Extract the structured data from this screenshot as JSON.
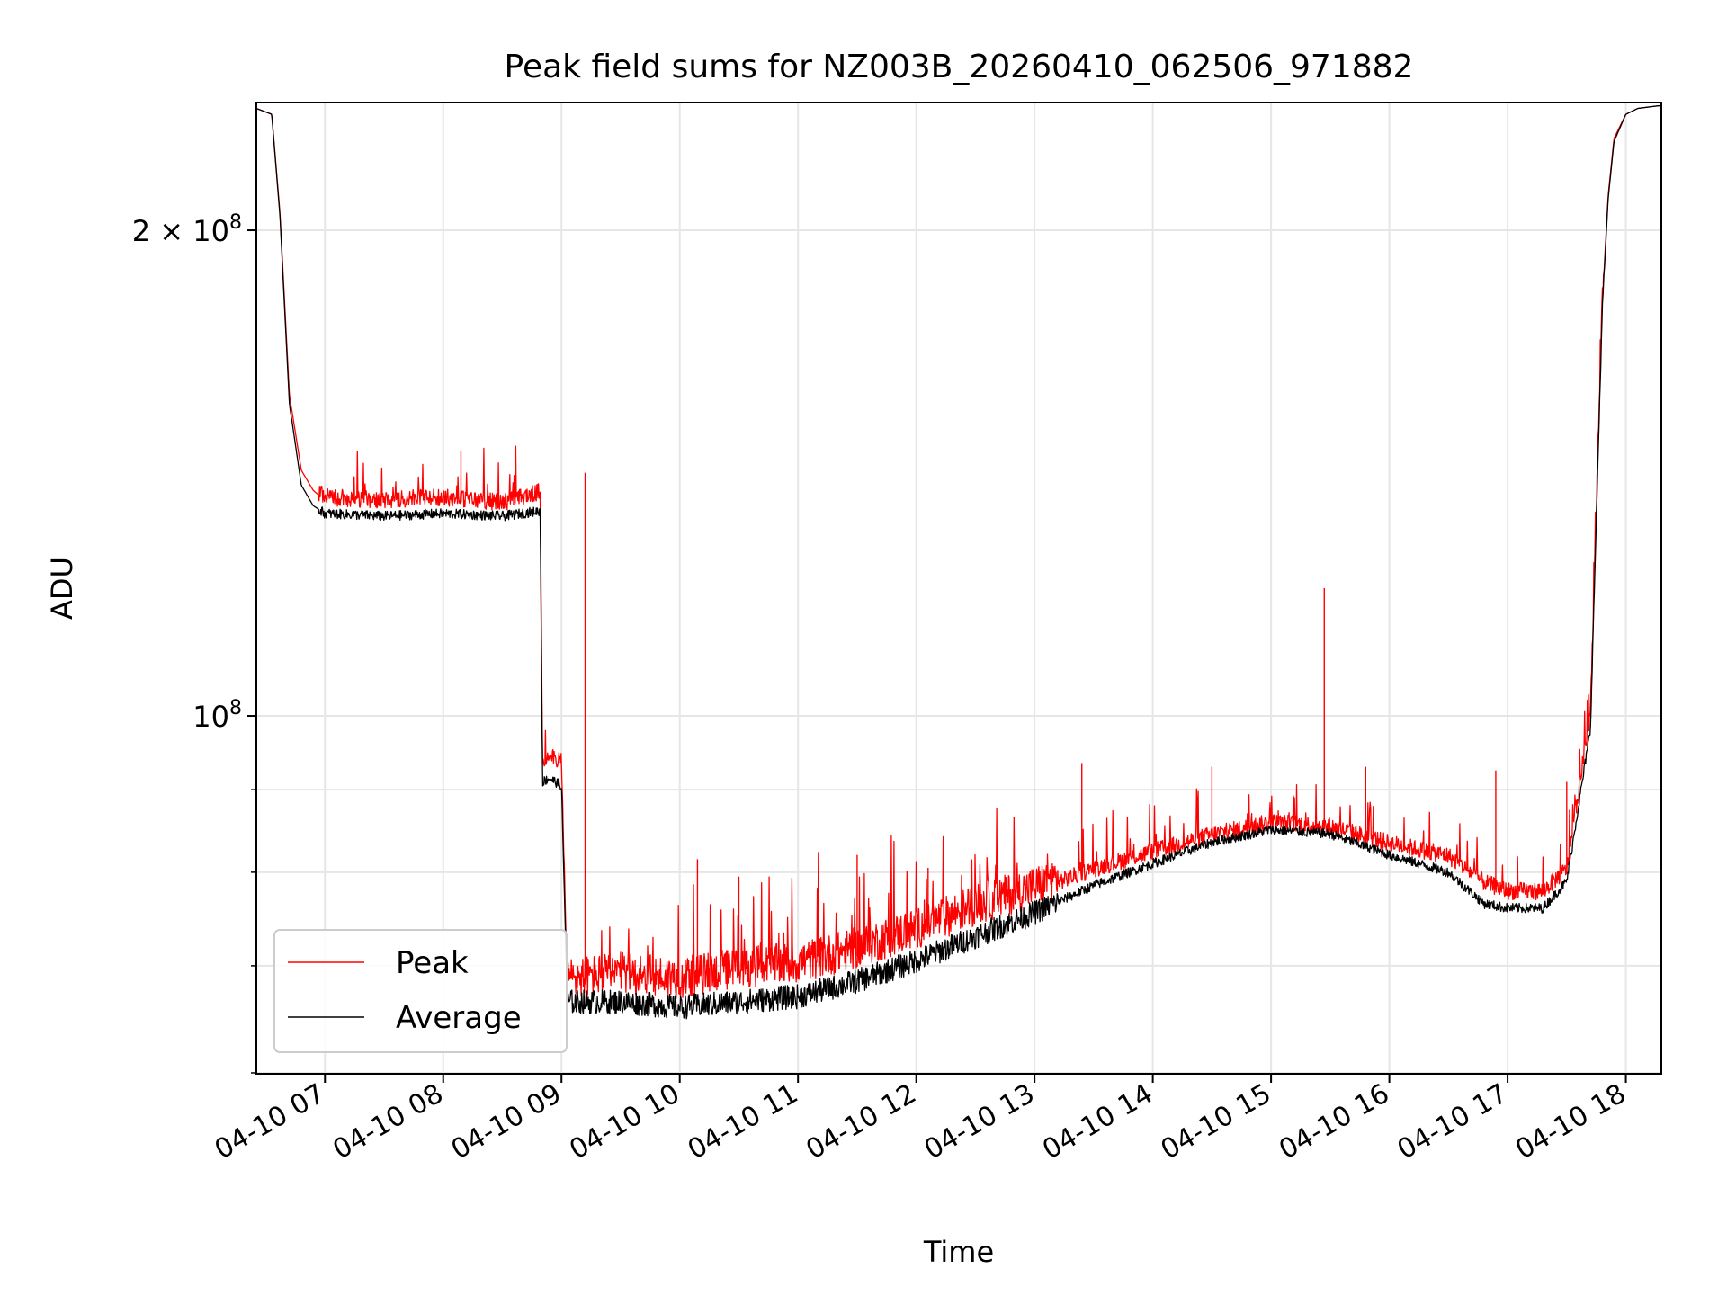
{
  "chart_data": {
    "type": "line",
    "title": "Peak field sums for NZ003B_20260410_062506_971882",
    "xlabel": "Time",
    "ylabel": "ADU",
    "yscale": "log",
    "xlim_hours": [
      6.42,
      18.3
    ],
    "ylim": [
      60000000,
      240000000
    ],
    "x_ticks": [
      {
        "hour": 7,
        "label": "04-10 07"
      },
      {
        "hour": 8,
        "label": "04-10 08"
      },
      {
        "hour": 9,
        "label": "04-10 09"
      },
      {
        "hour": 10,
        "label": "04-10 10"
      },
      {
        "hour": 11,
        "label": "04-10 11"
      },
      {
        "hour": 12,
        "label": "04-10 12"
      },
      {
        "hour": 13,
        "label": "04-10 13"
      },
      {
        "hour": 14,
        "label": "04-10 14"
      },
      {
        "hour": 15,
        "label": "04-10 15"
      },
      {
        "hour": 16,
        "label": "04-10 16"
      },
      {
        "hour": 17,
        "label": "04-10 17"
      },
      {
        "hour": 18,
        "label": "04-10 18"
      }
    ],
    "y_major_ticks": [
      {
        "value": 100000000,
        "base": "10",
        "exp": "8"
      },
      {
        "value": 200000000,
        "base": "2 × 10",
        "exp": "8"
      }
    ],
    "y_minor_ticks": [
      60000000,
      70000000,
      80000000,
      90000000
    ],
    "grid": true,
    "legend_position": "lower-left",
    "series": [
      {
        "name": "Peak",
        "color": "#ff0000",
        "x_hours": [
          6.42,
          6.55,
          6.62,
          6.7,
          6.8,
          6.9,
          7.0,
          7.5,
          8.0,
          8.5,
          8.82,
          8.84,
          8.9,
          9.0,
          9.05,
          9.5,
          10.0,
          10.5,
          11.0,
          11.5,
          12.0,
          12.5,
          13.0,
          13.5,
          14.0,
          14.5,
          15.0,
          15.5,
          16.0,
          16.5,
          16.8,
          17.0,
          17.3,
          17.5,
          17.7,
          17.8,
          17.85,
          17.9,
          18.0,
          18.1,
          18.3
        ],
        "values": [
          238000000,
          236000000,
          205000000,
          158000000,
          142000000,
          138000000,
          136000000,
          135500000,
          136000000,
          135000000,
          137000000,
          93000000,
          94500000,
          93000000,
          68000000,
          68500000,
          68000000,
          69000000,
          69500000,
          71000000,
          73000000,
          75500000,
          77500000,
          80000000,
          82000000,
          84000000,
          85500000,
          85000000,
          83000000,
          81500000,
          78500000,
          77500000,
          77500000,
          80000000,
          100000000,
          180000000,
          210000000,
          228000000,
          236000000,
          238000000,
          239000000
        ],
        "spikes": [
          {
            "hour": 8.15,
            "value": 146000000
          },
          {
            "hour": 9.2,
            "value": 141500000
          },
          {
            "hour": 10.15,
            "value": 81500000
          },
          {
            "hour": 10.5,
            "value": 79500000
          },
          {
            "hour": 11.5,
            "value": 82000000
          },
          {
            "hour": 12.1,
            "value": 80500000
          },
          {
            "hour": 13.4,
            "value": 93500000
          },
          {
            "hour": 14.5,
            "value": 93000000
          },
          {
            "hour": 15.45,
            "value": 120000000
          },
          {
            "hour": 15.8,
            "value": 93000000
          },
          {
            "hour": 16.9,
            "value": 92500000
          },
          {
            "hour": 17.5,
            "value": 91000000
          }
        ]
      },
      {
        "name": "Average",
        "color": "#000000",
        "x_hours": [
          6.42,
          6.55,
          6.62,
          6.7,
          6.8,
          6.9,
          7.0,
          7.5,
          8.0,
          8.5,
          8.82,
          8.84,
          8.9,
          9.0,
          9.05,
          9.5,
          10.0,
          10.5,
          11.0,
          11.5,
          12.0,
          12.5,
          13.0,
          13.5,
          14.0,
          14.5,
          15.0,
          15.5,
          16.0,
          16.5,
          16.8,
          17.0,
          17.3,
          17.5,
          17.7,
          17.8,
          17.85,
          17.9,
          18.0,
          18.1,
          18.3
        ],
        "values": [
          238000000,
          236000000,
          204000000,
          156000000,
          139000000,
          135000000,
          133500000,
          133000000,
          133500000,
          133000000,
          134000000,
          91000000,
          91500000,
          90500000,
          66500000,
          66500000,
          66000000,
          66500000,
          67000000,
          68500000,
          70500000,
          73000000,
          75500000,
          78500000,
          81000000,
          83500000,
          85000000,
          84500000,
          82000000,
          80000000,
          76500000,
          76000000,
          76000000,
          79000000,
          98000000,
          178000000,
          209000000,
          227000000,
          236000000,
          238000000,
          239000000
        ]
      }
    ]
  }
}
